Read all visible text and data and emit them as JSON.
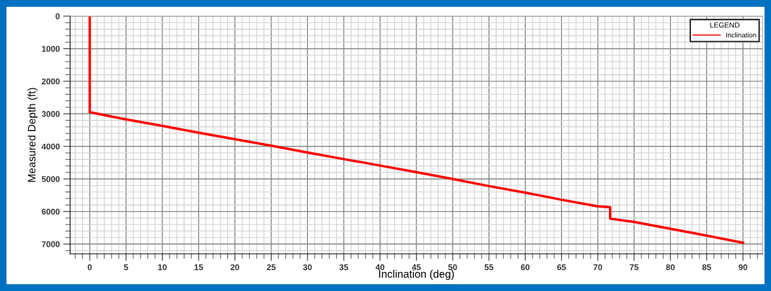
{
  "chart_data": {
    "type": "line",
    "xlabel": "Inclination (deg)",
    "ylabel": "Measured Depth (ft)",
    "legend_title": "LEGEND",
    "legend": "top right",
    "grid": true,
    "xlim": [
      -2.7,
      92.7
    ],
    "xticks": [
      0,
      5,
      10,
      15,
      20,
      25,
      30,
      35,
      40,
      45,
      50,
      55,
      60,
      65,
      70,
      75,
      80,
      85,
      90
    ],
    "ylim": [
      7300,
      0
    ],
    "yticks": [
      0,
      1000,
      2000,
      3000,
      4000,
      5000,
      6000,
      7000
    ],
    "series": [
      {
        "name": "Inclination",
        "color": "#ff0000",
        "x": [
          0,
          0,
          5,
          10,
          15,
          20,
          25,
          30,
          35,
          40,
          45,
          50,
          55,
          60,
          65,
          70,
          71.7,
          71.7,
          75,
          80,
          85,
          90
        ],
        "values": [
          0,
          2950,
          3170,
          3370,
          3580,
          3780,
          3980,
          4190,
          4390,
          4590,
          4790,
          5000,
          5220,
          5420,
          5640,
          5840,
          5870,
          6220,
          6320,
          6530,
          6740,
          6960
        ]
      }
    ]
  }
}
